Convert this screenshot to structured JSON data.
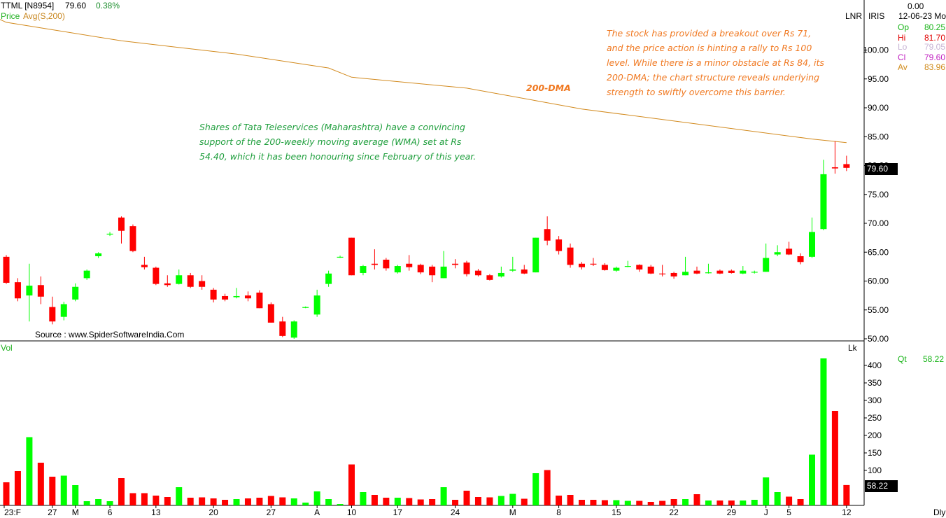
{
  "header": {
    "symbol": "TTML [N8954]",
    "price": "79.60",
    "change": "0.38%",
    "price_label": "Price",
    "avg_label": "Avg(S,200)",
    "lnr": "LNR",
    "iris": "IRIS",
    "corner_value": "0.00",
    "date": "12-06-23 Mo"
  },
  "ohlc": {
    "op_label": "Op",
    "op": "80.25",
    "hi_label": "Hi",
    "hi": "81.70",
    "lo_label": "Lo",
    "lo": "79.05",
    "cl_label": "Cl",
    "cl": "79.60",
    "av_label": "Av",
    "av": "83.96"
  },
  "volume_panel": {
    "label": "Vol",
    "unit": "Lk",
    "qt_label": "Qt",
    "qt_value": "58.22",
    "badge": "58.22"
  },
  "price_badge": "79.60",
  "annotations": {
    "dma_label": "200-DMA",
    "top_right_note": "The stock has provided a breakout over Rs 71,\nand the price action is hinting a rally to Rs 100\nlevel. While there is a minor obstacle at Rs 84, its\n200-DMA; the chart structure reveals underlying\nstrength to swiftly overcome this barrier.",
    "middle_note": "Shares of Tata Teleservices (Maharashtra) have a convincing\nsupport of the 200-weekly moving average (WMA) set at Rs\n54.40, which it has been honouring since February of this year.",
    "source": "Source : www.SpiderSoftwareIndia.Com"
  },
  "footer": {
    "period": "Dly"
  },
  "colors": {
    "up": "#00ff00",
    "down": "#ff0000",
    "dma": "#d28a1e",
    "note_orange": "#f07820",
    "note_green": "#1e9e3c"
  },
  "chart_data": {
    "type": "candlestick",
    "x_tick_labels": [
      "23:F",
      "27",
      "M",
      "6",
      "13",
      "20",
      "27",
      "A",
      "10",
      "17",
      "24",
      "M",
      "8",
      "15",
      "22",
      "29",
      "J",
      "5",
      "12"
    ],
    "price_axis": {
      "ticks": [
        50,
        55,
        60,
        65,
        70,
        75,
        80,
        85,
        90,
        95,
        100
      ],
      "ylim": [
        50,
        107
      ]
    },
    "volume_axis": {
      "ticks": [
        100,
        150,
        200,
        250,
        300,
        350,
        400
      ],
      "ylim": [
        0,
        430
      ],
      "unit": "Lk"
    },
    "price_series_name": "Price",
    "avg_series_name": "Avg(S,200)",
    "candles": [
      [
        64.2,
        64.5,
        59.5,
        59.7
      ],
      [
        59.8,
        60.5,
        56.5,
        57.0
      ],
      [
        57.5,
        63.0,
        53.0,
        59.2
      ],
      [
        59.3,
        60.8,
        56.0,
        57.3
      ],
      [
        55.5,
        57.3,
        52.5,
        53.0
      ],
      [
        53.8,
        56.4,
        53.2,
        56.0
      ],
      [
        56.8,
        59.6,
        56.5,
        59.0
      ],
      [
        60.5,
        62.0,
        60.2,
        61.8
      ],
      [
        64.3,
        65.0,
        64.0,
        64.8
      ],
      [
        68.1,
        68.5,
        67.8,
        68.2
      ],
      [
        71.0,
        71.2,
        66.5,
        68.7
      ],
      [
        69.5,
        69.8,
        65.0,
        65.2
      ],
      [
        62.8,
        64.2,
        62.0,
        62.4
      ],
      [
        62.3,
        62.5,
        59.3,
        59.5
      ],
      [
        59.6,
        61.0,
        59.0,
        59.3
      ],
      [
        59.5,
        62.0,
        59.4,
        61.0
      ],
      [
        61.0,
        61.4,
        58.8,
        59.0
      ],
      [
        60.0,
        61.0,
        58.5,
        59.0
      ],
      [
        58.5,
        58.8,
        56.3,
        56.8
      ],
      [
        57.4,
        57.8,
        56.5,
        56.8
      ],
      [
        57.2,
        58.8,
        57.0,
        57.4
      ],
      [
        57.5,
        58.2,
        56.5,
        57.0
      ],
      [
        58.0,
        58.4,
        55.3,
        55.3
      ],
      [
        56.0,
        56.3,
        52.8,
        52.8
      ],
      [
        53.0,
        53.8,
        50.3,
        50.5
      ],
      [
        50.2,
        53.2,
        50.0,
        53.0
      ],
      [
        55.4,
        55.6,
        55.3,
        55.5
      ],
      [
        54.2,
        58.5,
        53.8,
        57.5
      ],
      [
        59.5,
        61.8,
        59.0,
        61.3
      ],
      [
        64.2,
        64.4,
        64.0,
        64.2
      ],
      [
        67.5,
        67.5,
        61.0,
        61.0
      ],
      [
        61.4,
        62.8,
        61.0,
        62.6
      ],
      [
        63.0,
        65.5,
        62.0,
        62.8
      ],
      [
        63.7,
        64.0,
        61.8,
        62.2
      ],
      [
        61.5,
        62.8,
        61.3,
        62.6
      ],
      [
        63.0,
        64.5,
        61.8,
        62.4
      ],
      [
        62.8,
        63.0,
        61.2,
        61.5
      ],
      [
        62.5,
        62.8,
        59.8,
        61.0
      ],
      [
        60.5,
        65.2,
        60.5,
        62.5
      ],
      [
        63.0,
        63.8,
        62.2,
        62.8
      ],
      [
        63.2,
        63.5,
        60.8,
        61.2
      ],
      [
        61.8,
        62.1,
        60.8,
        61.0
      ],
      [
        61.0,
        61.2,
        60.1,
        60.2
      ],
      [
        60.8,
        62.5,
        60.6,
        61.4
      ],
      [
        61.8,
        64.2,
        61.6,
        62.0
      ],
      [
        62.0,
        62.8,
        61.2,
        61.3
      ],
      [
        61.5,
        67.5,
        61.5,
        67.5
      ],
      [
        69.0,
        71.2,
        66.2,
        67.0
      ],
      [
        67.2,
        67.8,
        64.6,
        65.2
      ],
      [
        65.8,
        66.5,
        62.3,
        62.8
      ],
      [
        63.0,
        63.3,
        62.0,
        62.4
      ],
      [
        63.0,
        64.0,
        62.6,
        62.9
      ],
      [
        62.8,
        63.1,
        61.8,
        61.9
      ],
      [
        61.8,
        62.5,
        61.6,
        62.3
      ],
      [
        62.5,
        63.5,
        62.4,
        62.6
      ],
      [
        62.8,
        62.9,
        61.6,
        62.0
      ],
      [
        62.5,
        62.8,
        61.2,
        61.3
      ],
      [
        61.3,
        62.8,
        60.8,
        61.2
      ],
      [
        61.4,
        61.6,
        60.4,
        60.8
      ],
      [
        61.0,
        64.2,
        61.0,
        61.6
      ],
      [
        61.8,
        62.5,
        61.2,
        61.3
      ],
      [
        61.4,
        63.0,
        61.3,
        61.5
      ],
      [
        61.8,
        62.0,
        61.2,
        61.3
      ],
      [
        61.8,
        62.0,
        61.3,
        61.4
      ],
      [
        61.3,
        62.6,
        61.2,
        61.8
      ],
      [
        61.5,
        61.8,
        61.3,
        61.6
      ],
      [
        61.6,
        66.5,
        61.6,
        64.0
      ],
      [
        64.6,
        66.2,
        64.3,
        65.0
      ],
      [
        65.6,
        66.8,
        64.5,
        64.6
      ],
      [
        64.3,
        64.8,
        62.9,
        63.3
      ],
      [
        64.2,
        71.0,
        64.0,
        68.5
      ],
      [
        69.0,
        81.0,
        68.8,
        78.5
      ],
      [
        79.7,
        84.2,
        78.6,
        79.5
      ],
      [
        80.25,
        81.7,
        79.05,
        79.6
      ]
    ],
    "avg_200": [
      [
        0,
        104.8
      ],
      [
        10,
        101.6
      ],
      [
        20,
        99.3
      ],
      [
        28,
        96.9
      ],
      [
        30,
        95.3
      ],
      [
        40,
        93.4
      ],
      [
        50,
        89.8
      ],
      [
        60,
        87.2
      ],
      [
        70,
        84.6
      ],
      [
        73,
        83.96
      ]
    ],
    "volume": [
      66,
      98,
      195,
      122,
      82,
      85,
      58,
      12,
      18,
      12,
      78,
      35,
      35,
      28,
      24,
      52,
      22,
      23,
      20,
      16,
      18,
      20,
      22,
      27,
      23,
      20,
      8,
      40,
      18,
      4,
      117,
      38,
      30,
      22,
      22,
      21,
      17,
      18,
      52,
      16,
      42,
      24,
      23,
      27,
      33,
      19,
      92,
      101,
      28,
      30,
      16,
      16,
      15,
      15,
      13,
      13,
      10,
      13,
      18,
      18,
      32,
      14,
      14,
      14,
      14,
      16,
      80,
      38,
      25,
      18,
      145,
      420,
      270,
      58.22
    ]
  }
}
